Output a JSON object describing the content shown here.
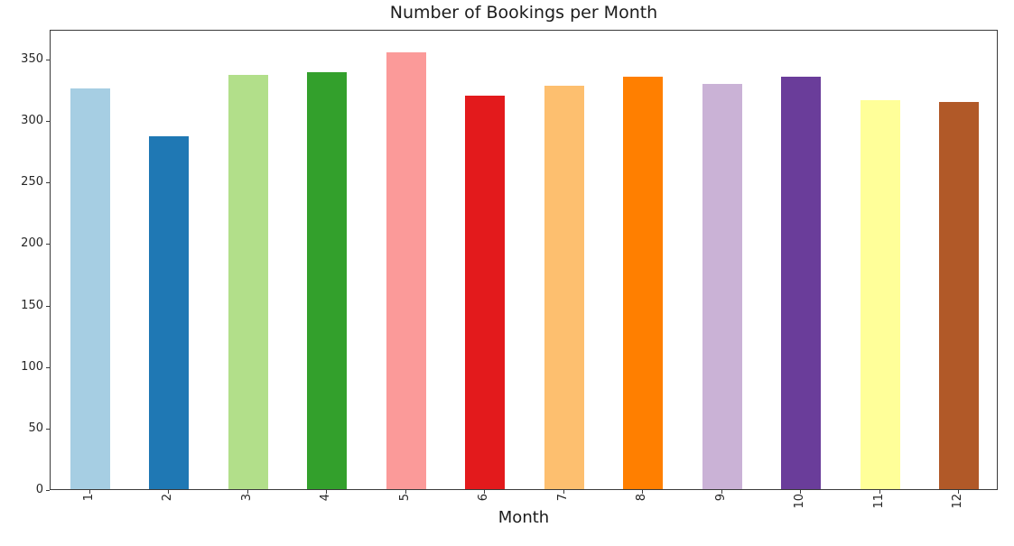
{
  "chart_data": {
    "type": "bar",
    "title": "Number of Bookings per Month",
    "xlabel": "Month",
    "ylabel": "",
    "categories": [
      "1",
      "2",
      "3",
      "4",
      "5",
      "6",
      "7",
      "8",
      "9",
      "10",
      "11",
      "12"
    ],
    "values": [
      326,
      287,
      337,
      339,
      355,
      320,
      328,
      335,
      329,
      335,
      316,
      315
    ],
    "bar_colors": [
      "#a6cee3",
      "#1f78b4",
      "#b2df8a",
      "#33a02c",
      "#fb9a99",
      "#e31a1c",
      "#fdbf6f",
      "#ff7f00",
      "#cab2d6",
      "#6a3d9a",
      "#ffff99",
      "#b15928"
    ],
    "yticks": [
      0,
      50,
      100,
      150,
      200,
      250,
      300,
      350
    ],
    "ylim": [
      0,
      374
    ],
    "bar_width_fraction": 0.5,
    "x_tick_rotation_deg": 90,
    "grid": false,
    "legend": false,
    "background": "#ffffff",
    "text_color": "#1c1c1c",
    "spine_color": "#3a3a3a"
  }
}
